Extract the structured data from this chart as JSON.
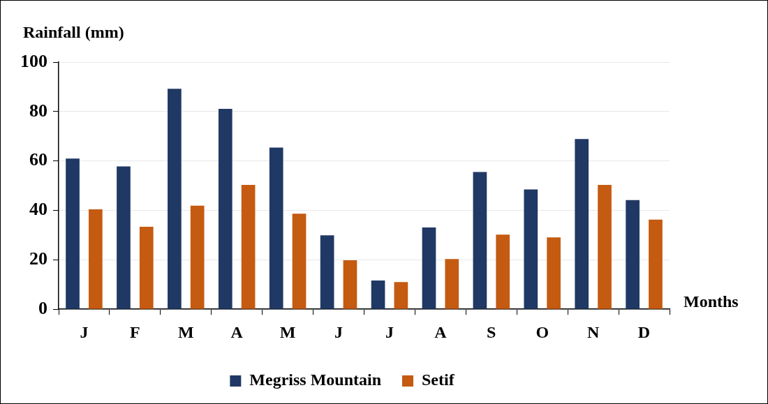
{
  "chart_data": {
    "type": "bar",
    "ylabel": "Rainfall (mm)",
    "xlabel": "Months",
    "categories": [
      "J",
      "F",
      "M",
      "A",
      "M",
      "J",
      "J",
      "A",
      "S",
      "O",
      "N",
      "D"
    ],
    "series": [
      {
        "name": "Megriss Mountain",
        "color": "#203864",
        "values": [
          61,
          57.8,
          89.2,
          81.1,
          65.4,
          29.9,
          11.6,
          33.1,
          55.5,
          48.5,
          68.9,
          44.2
        ]
      },
      {
        "name": "Setif",
        "color": "#c55a11",
        "values": [
          40.4,
          33.4,
          41.9,
          50.3,
          38.7,
          19.8,
          11,
          20.3,
          30.2,
          29.1,
          50.3,
          36.3
        ]
      }
    ],
    "ylim": [
      0,
      100
    ],
    "yticks": [
      0,
      20,
      40,
      60,
      80,
      100
    ],
    "grid": "y",
    "legend": "bottom"
  }
}
